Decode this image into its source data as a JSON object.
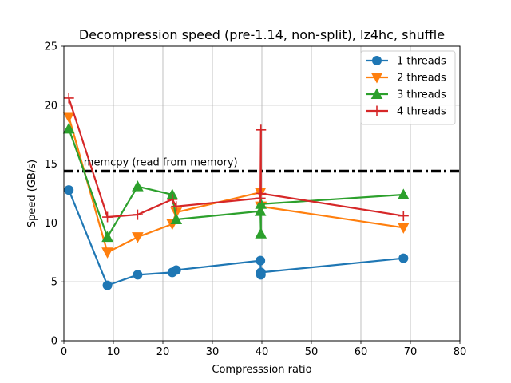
{
  "chart_data": {
    "type": "line",
    "title": "Decompression speed (pre-1.14, non-split), lz4hc, shuffle",
    "xlabel": "Compresssion ratio",
    "ylabel": "Speed (GB/s)",
    "xlim": [
      0,
      80
    ],
    "ylim": [
      0,
      25
    ],
    "xticks": [
      0,
      10,
      20,
      30,
      40,
      50,
      60,
      70,
      80
    ],
    "yticks": [
      0,
      5,
      10,
      15,
      20,
      25
    ],
    "grid": true,
    "legend_position": "top-right",
    "series": [
      {
        "name": "1 threads",
        "color": "#1f77b4",
        "marker": "circle",
        "x": [
          1.0,
          8.8,
          14.9,
          21.9,
          22.7,
          39.7,
          39.8,
          39.8,
          68.6
        ],
        "y": [
          12.8,
          4.7,
          5.6,
          5.8,
          6.0,
          6.8,
          5.6,
          5.8,
          7.0
        ]
      },
      {
        "name": "2 threads",
        "color": "#ff7f0e",
        "marker": "triangle-down",
        "x": [
          1.0,
          8.8,
          14.9,
          21.9,
          22.7,
          39.7,
          39.8,
          39.8,
          68.6
        ],
        "y": [
          19.0,
          7.5,
          8.8,
          9.9,
          10.9,
          12.6,
          11.4,
          11.4,
          9.6
        ]
      },
      {
        "name": "3 threads",
        "color": "#2ca02c",
        "marker": "triangle-up",
        "x": [
          1.0,
          8.8,
          14.9,
          21.9,
          22.7,
          39.7,
          39.8,
          39.8,
          68.6
        ],
        "y": [
          18.0,
          8.8,
          13.1,
          12.4,
          10.3,
          11.0,
          9.1,
          11.6,
          12.4
        ]
      },
      {
        "name": "4 threads",
        "color": "#d62728",
        "marker": "plus",
        "x": [
          1.0,
          8.8,
          14.9,
          21.9,
          22.7,
          39.7,
          39.8,
          39.8,
          68.6
        ],
        "y": [
          20.6,
          10.5,
          10.7,
          12.0,
          11.4,
          12.1,
          17.9,
          12.5,
          10.6
        ]
      }
    ],
    "reference_line": {
      "y": 14.4,
      "label": "memcpy (read from memory)",
      "label_x": 4,
      "color": "#000000",
      "style": "dash-dot"
    }
  }
}
